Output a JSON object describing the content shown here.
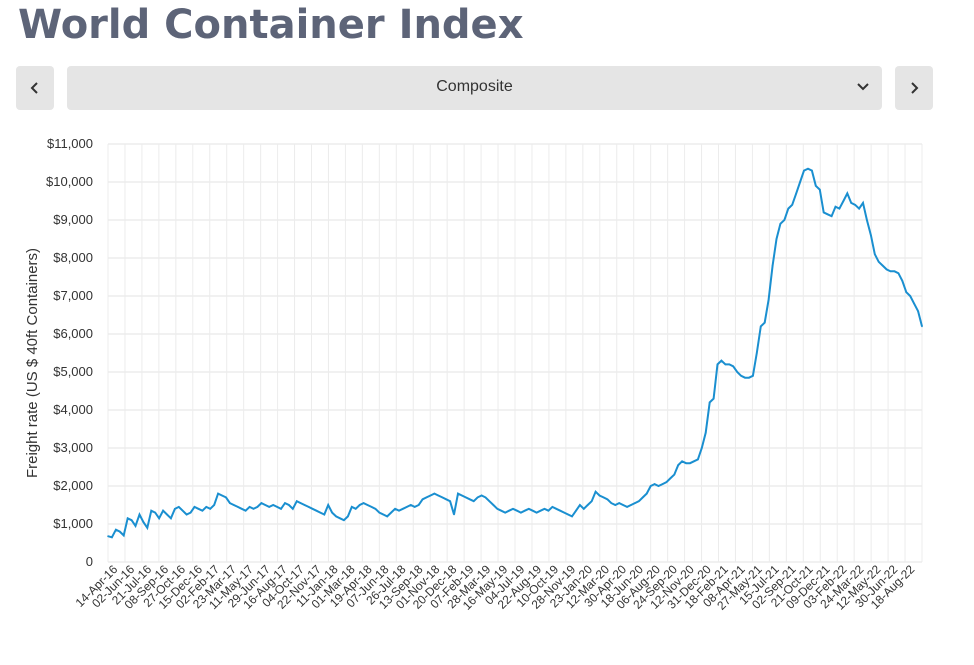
{
  "page": {
    "title": "World Container Index",
    "colors": {
      "title": "#5d6478",
      "line": "#1a8fd0",
      "control_bg": "#e5e5e5"
    }
  },
  "controls": {
    "prev_icon": "chevron-left-icon",
    "next_icon": "chevron-right-icon",
    "dropdown_icon": "chevron-down-icon",
    "selected": "Composite"
  },
  "chart_data": {
    "type": "line",
    "title": "",
    "xlabel": "",
    "ylabel": "Freight rate (US $ 40ft Containers)",
    "ylim": [
      0,
      11000
    ],
    "y_ticks": [
      0,
      1000,
      2000,
      3000,
      4000,
      5000,
      6000,
      7000,
      8000,
      9000,
      10000,
      11000
    ],
    "y_tick_labels": [
      "0",
      "$1,000",
      "$2,000",
      "$3,000",
      "$4,000",
      "$5,000",
      "$6,000",
      "$7,000",
      "$8,000",
      "$9,000",
      "$10,000",
      "$11,000"
    ],
    "x_tick_labels": [
      "14-Apr-16",
      "02-Jun-16",
      "21-Jul-16",
      "08-Sep-16",
      "27-Oct-16",
      "15-Dec-16",
      "02-Feb-17",
      "23-Mar-17",
      "11-May-17",
      "29-Jun-17",
      "16-Aug-17",
      "04-Oct-17",
      "22-Nov-17",
      "11-Jan-18",
      "01-Mar-18",
      "19-Apr-18",
      "07-Jun-18",
      "26-Jul-18",
      "13-Sep-18",
      "01-Nov-18",
      "20-Dec-18",
      "07-Feb-19",
      "28-Mar-19",
      "16-May-19",
      "04-Jul-19",
      "22-Aug-19",
      "10-Oct-19",
      "28-Nov-19",
      "23-Jan-20",
      "12-Mar-20",
      "30-Apr-20",
      "18-Jun-20",
      "06-Aug-20",
      "24-Sep-20",
      "12-Nov-20",
      "31-Dec-20",
      "18-Feb-21",
      "08-Apr-21",
      "27-May-21",
      "15-Jul-21",
      "02-Sep-21",
      "21-Oct-21",
      "09-Dec-21",
      "03-Feb-22",
      "24-Mar-22",
      "12-May-22",
      "30-Jun-22",
      "18-Aug-22"
    ],
    "grid": true,
    "legend": "none",
    "series": [
      {
        "values": [
          680,
          650,
          850,
          800,
          700,
          1150,
          1100,
          950,
          1250,
          1050,
          900,
          1350,
          1300,
          1150,
          1350,
          1250,
          1150,
          1400,
          1450,
          1350,
          1250,
          1300,
          1450,
          1400,
          1350,
          1450,
          1400,
          1500,
          1800,
          1750,
          1700,
          1550,
          1500,
          1450,
          1400,
          1350,
          1450,
          1400,
          1450,
          1550,
          1500,
          1450,
          1500,
          1450,
          1400,
          1550,
          1500,
          1400,
          1600,
          1550,
          1500,
          1450,
          1400,
          1350,
          1300,
          1250,
          1500,
          1300,
          1200,
          1150,
          1100,
          1200,
          1450,
          1400,
          1500,
          1550,
          1500,
          1450,
          1400,
          1300,
          1250,
          1200,
          1300,
          1400,
          1350,
          1400,
          1450,
          1500,
          1450,
          1500,
          1650,
          1700,
          1750,
          1800,
          1750,
          1700,
          1650,
          1600,
          1250,
          1800,
          1750,
          1700,
          1650,
          1600,
          1700,
          1750,
          1700,
          1600,
          1500,
          1400,
          1350,
          1300,
          1350,
          1400,
          1350,
          1300,
          1350,
          1400,
          1350,
          1300,
          1350,
          1400,
          1350,
          1450,
          1400,
          1350,
          1300,
          1250,
          1200,
          1350,
          1500,
          1400,
          1500,
          1600,
          1850,
          1750,
          1700,
          1650,
          1550,
          1500,
          1550,
          1500,
          1450,
          1500,
          1550,
          1600,
          1700,
          1800,
          2000,
          2050,
          2000,
          2050,
          2100,
          2200,
          2300,
          2550,
          2650,
          2600,
          2600,
          2650,
          2700,
          3000,
          3400,
          4200,
          4300,
          5200,
          5300,
          5200,
          5200,
          5150,
          5000,
          4900,
          4850,
          4850,
          4900,
          5500,
          6200,
          6300,
          6900,
          7800,
          8500,
          8900,
          9000,
          9300,
          9400,
          9700,
          10000,
          10300,
          10350,
          10300,
          9900,
          9800,
          9200,
          9150,
          9100,
          9350,
          9300,
          9500,
          9700,
          9450,
          9400,
          9300,
          9450,
          9000,
          8600,
          8100,
          7900,
          7800,
          7700,
          7650,
          7650,
          7600,
          7400,
          7100,
          7000,
          6800,
          6600,
          6200
        ]
      }
    ]
  }
}
